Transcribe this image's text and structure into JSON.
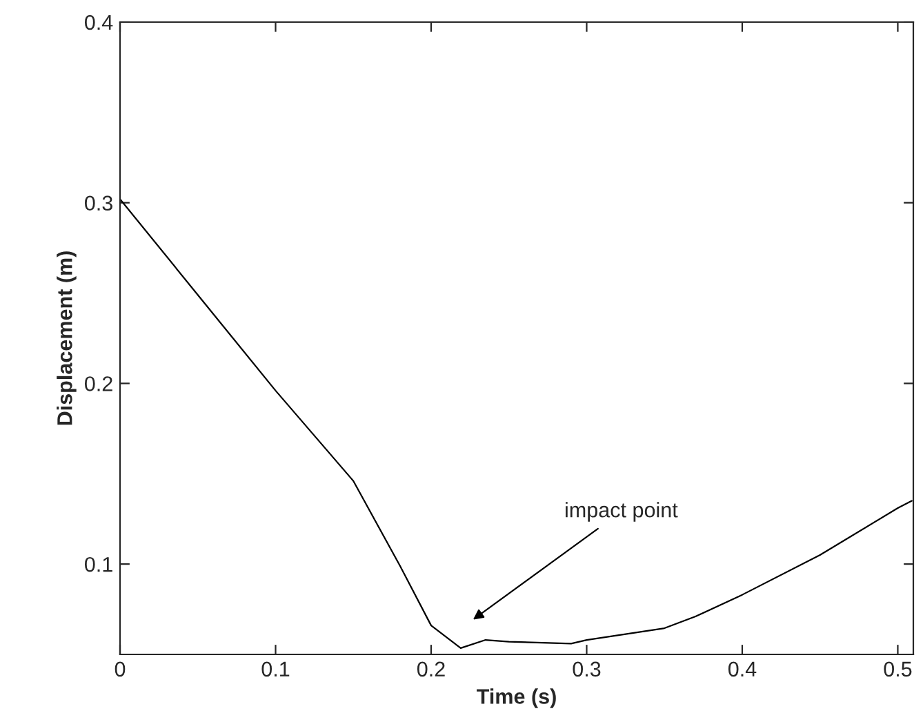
{
  "chart_data": {
    "type": "line",
    "xlabel": "Time (s)",
    "ylabel": "Displacement (m)",
    "x": [
      0,
      0.05,
      0.1,
      0.15,
      0.18,
      0.2,
      0.219,
      0.235,
      0.25,
      0.29,
      0.3,
      0.35,
      0.37,
      0.4,
      0.45,
      0.5,
      0.509
    ],
    "series": [
      {
        "color": "#000000",
        "values": [
          0.302,
          0.249,
          0.196,
          0.146,
          0.099,
          0.066,
          0.0535,
          0.058,
          0.057,
          0.056,
          0.058,
          0.0645,
          0.071,
          0.083,
          0.105,
          0.131,
          0.135
        ]
      }
    ],
    "xlim": [
      0,
      0.51
    ],
    "ylim": [
      0.05,
      0.4
    ],
    "xticks": [
      0,
      0.1,
      0.2,
      0.3,
      0.4,
      0.5
    ],
    "yticks": [
      0.1,
      0.2,
      0.3,
      0.4
    ],
    "annotations": [
      "impact point"
    ],
    "grid": false,
    "legend": false
  }
}
